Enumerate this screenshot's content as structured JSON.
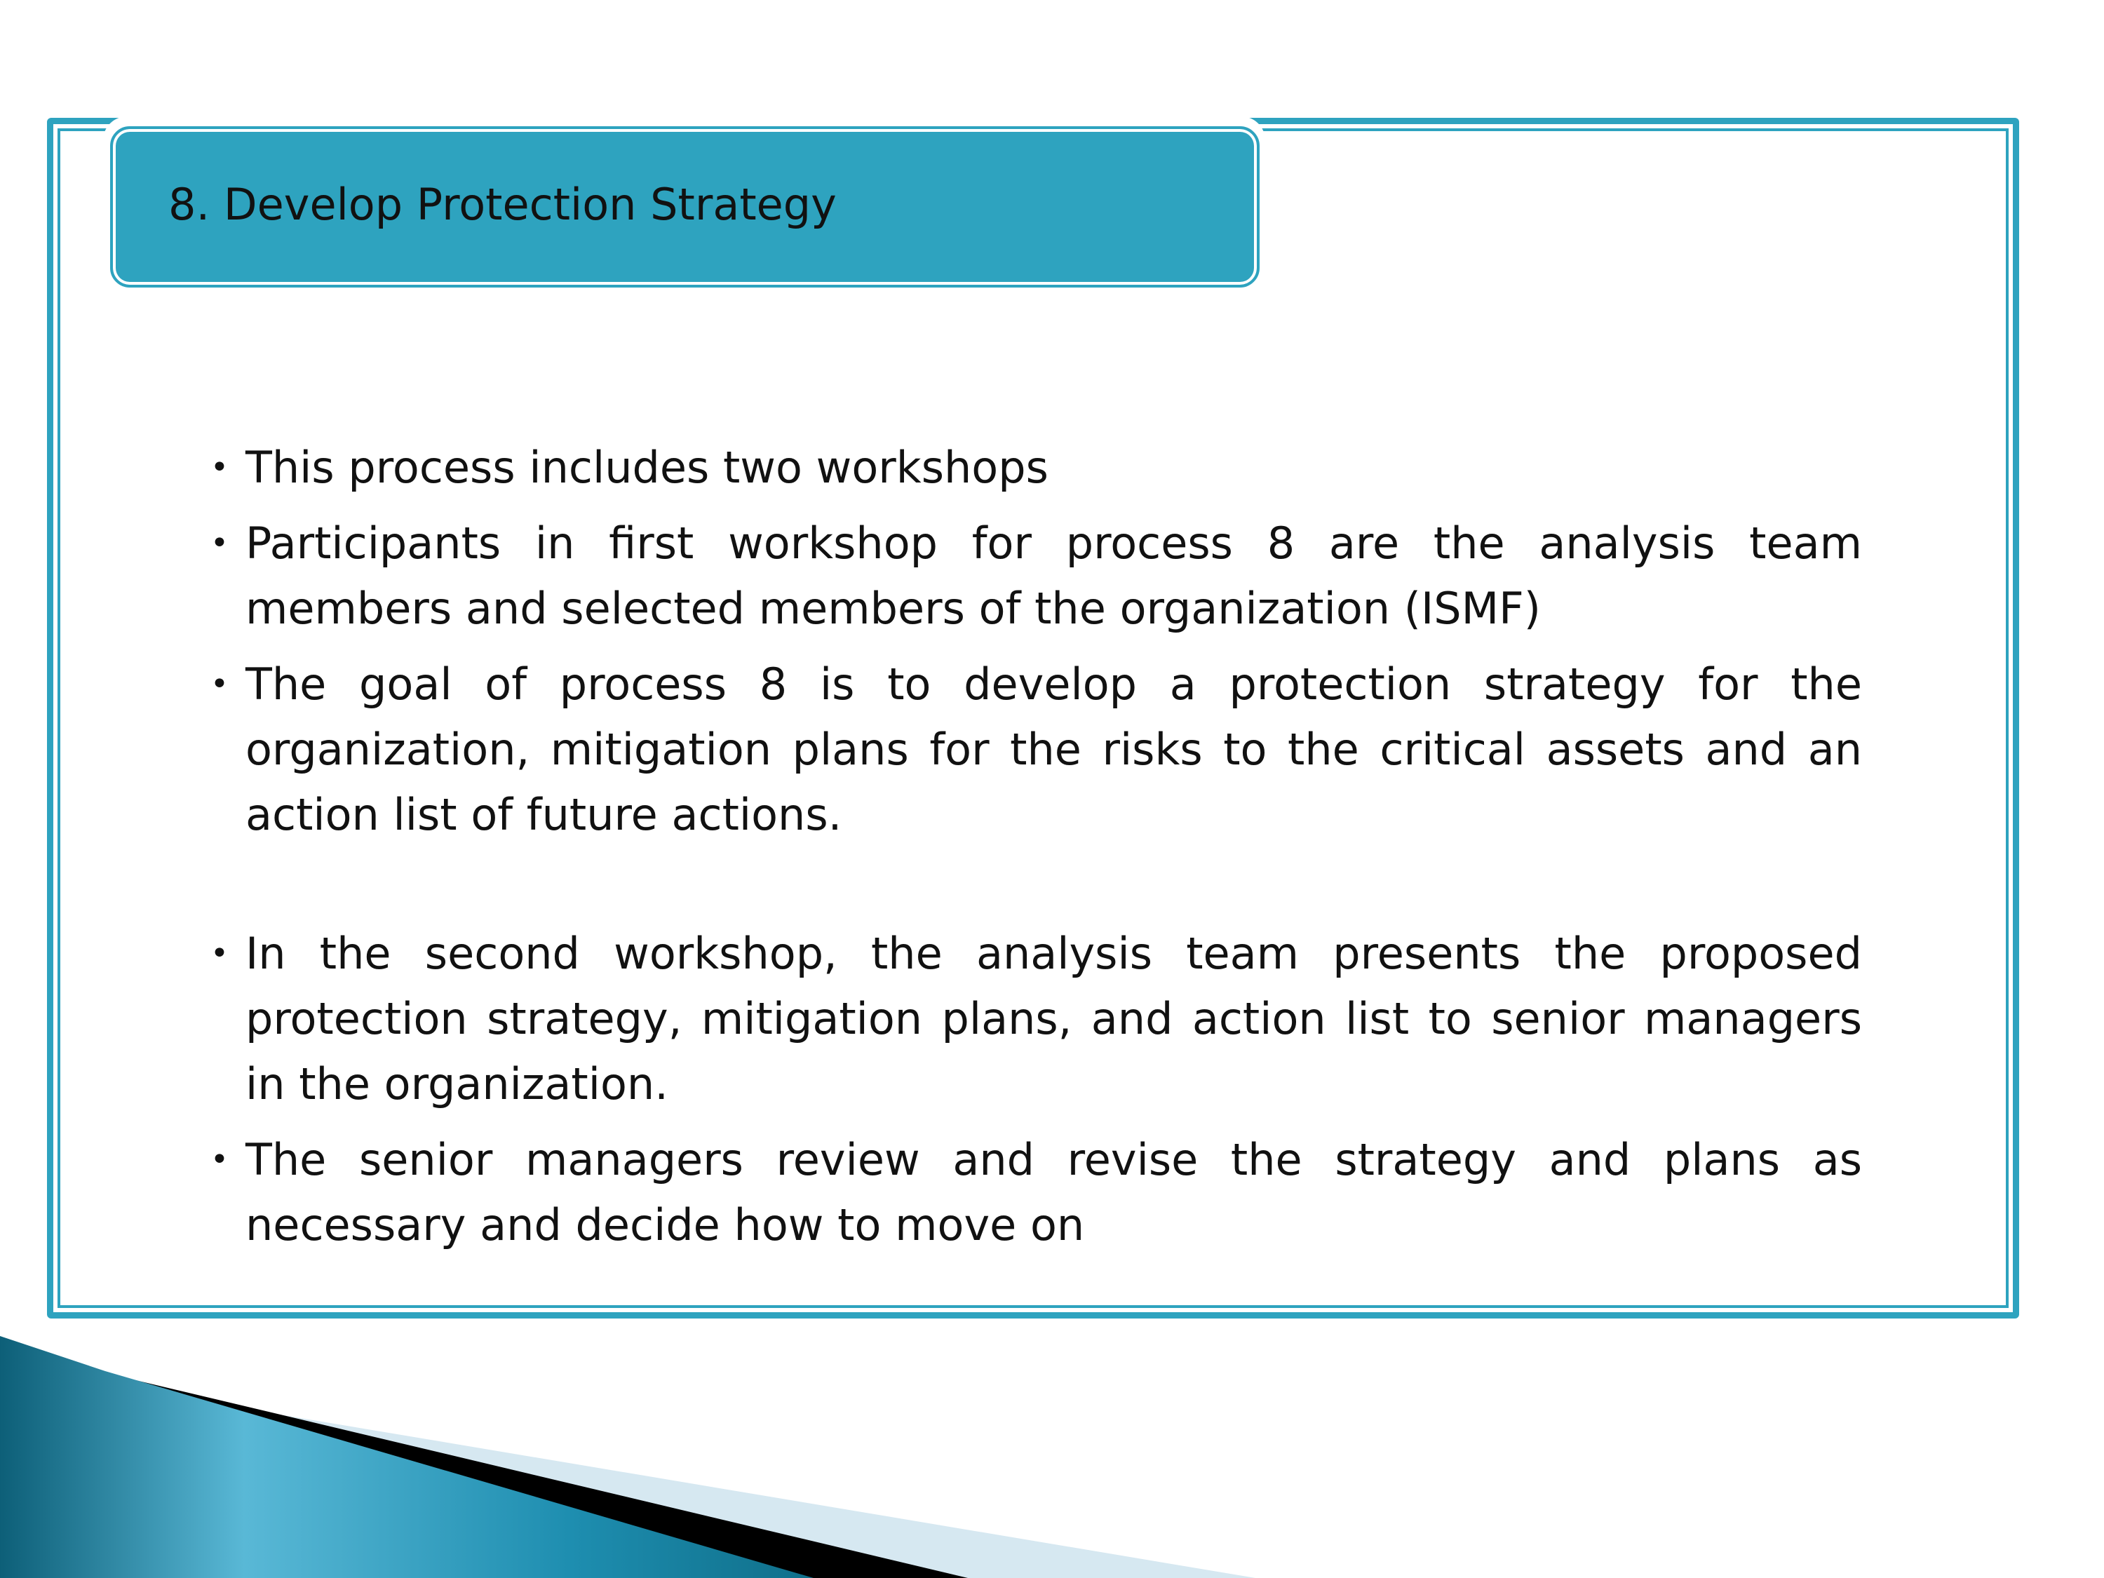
{
  "slide": {
    "title": "8. Develop Protection Strategy",
    "bullet_symbol": "•",
    "bullets": [
      "This process includes two workshops",
      "Participants in first workshop for process 8 are the analysis team members and selected members of the organization (ISMF)",
      "The goal of process 8 is to develop a protection strategy for the organization, mitigation plans for the risks to the critical assets and an action list of future actions.",
      "In the second workshop, the analysis team presents the proposed protection strategy, mitigation plans, and action list to senior managers in the organization.",
      "The senior managers review and revise the strategy and plans as necessary and decide how to move on"
    ]
  },
  "colors": {
    "accent": "#2ea3bf",
    "text": "#111111",
    "deco_dark": "#0f6f8a",
    "deco_light": "#d6e8f1",
    "deco_black": "#000000"
  }
}
